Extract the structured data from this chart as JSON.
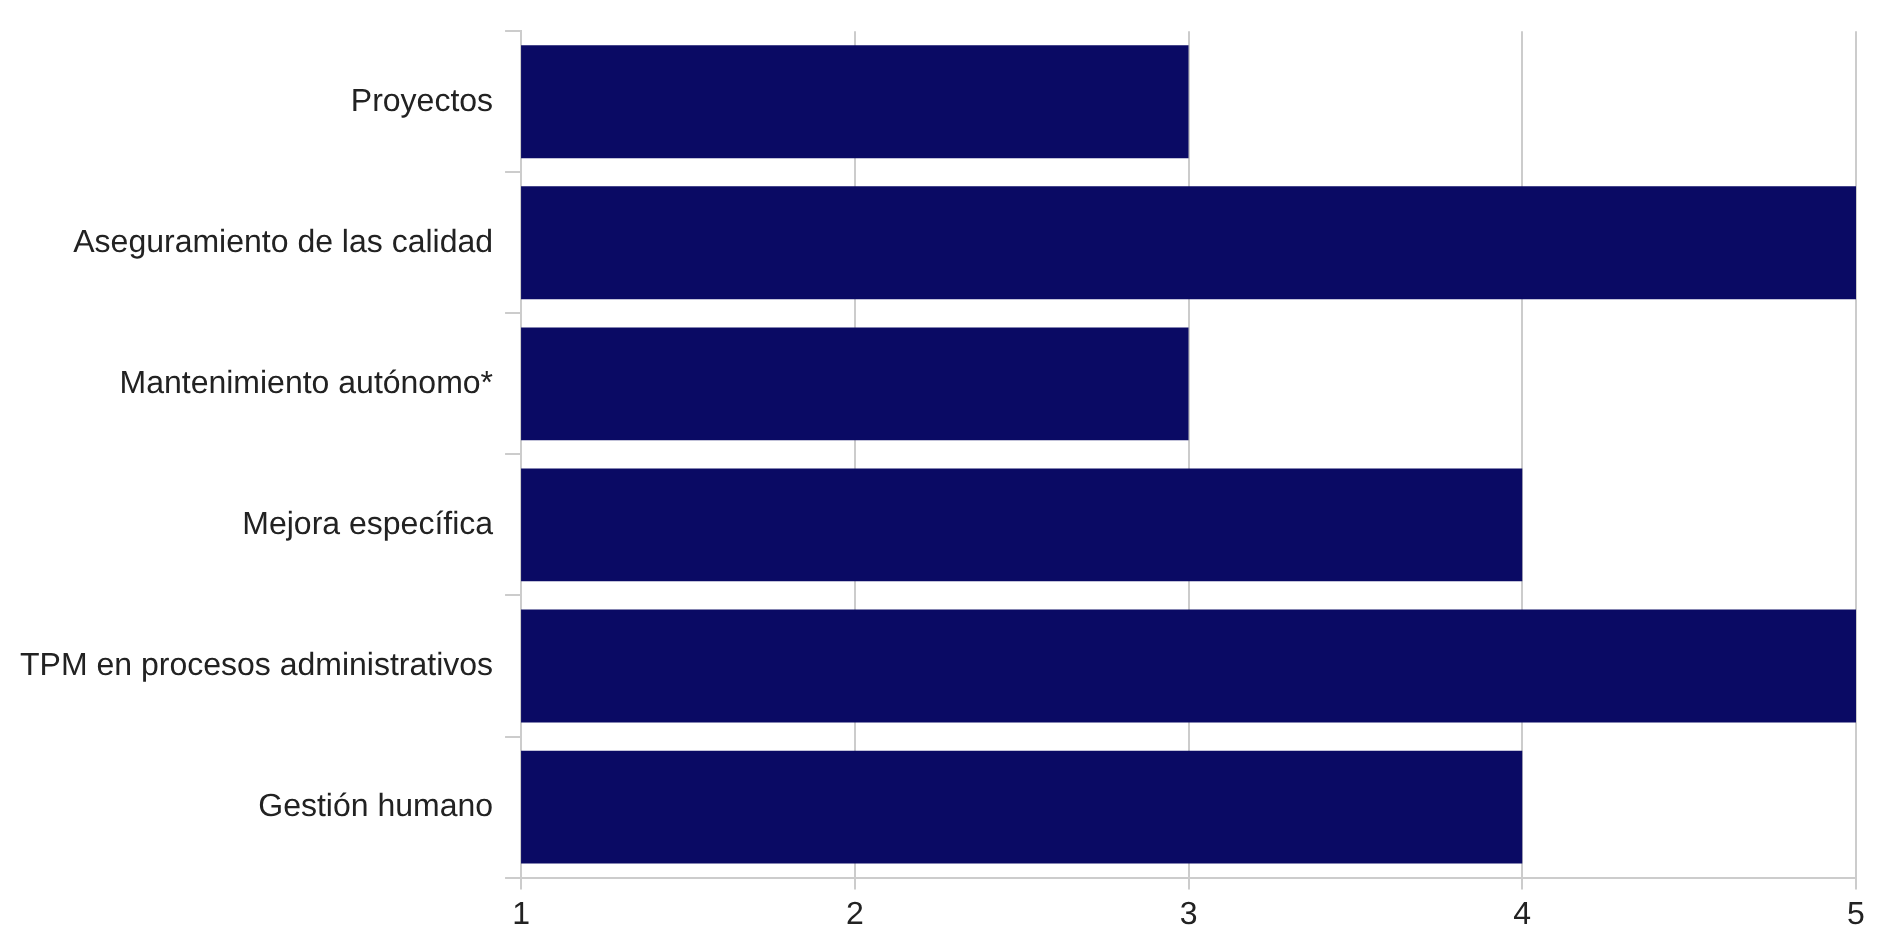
{
  "chart_data": {
    "type": "bar",
    "orientation": "horizontal",
    "categories": [
      "Proyectos",
      "Aseguramiento de las calidad",
      "Mantenimiento autónomo*",
      "Mejora específica",
      "TPM en procesos administrativos",
      "Gestión humano"
    ],
    "values": [
      3,
      5,
      3,
      4,
      5,
      4
    ],
    "color": "#0a0a64",
    "xlim": [
      1,
      5
    ],
    "xticks": [
      1,
      2,
      3,
      4,
      5
    ],
    "grid": "x"
  }
}
